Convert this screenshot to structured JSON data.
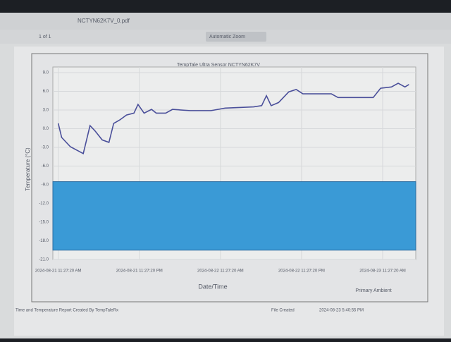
{
  "viewer": {
    "file_name": "NCTYN62K7V_0.pdf",
    "page_count": "1 of 1",
    "zoom": "Automatic Zoom"
  },
  "chart_data": {
    "type": "line",
    "title": "TempTale Ultra Sensor  NCTYN62K7V",
    "x_label": "Date/Time",
    "y_label": "Temperature (°C)",
    "x": [
      0,
      0.5,
      1.8,
      3.7,
      4.7,
      5.4,
      6.5,
      7.5,
      8.2,
      9.1,
      10.1,
      11.2,
      11.8,
      12.7,
      13.8,
      14.5,
      15.9,
      16.9,
      19.5,
      22.6,
      24.7,
      28.9,
      30.1,
      30.8,
      31.5,
      32.6,
      34.1,
      35.2,
      36.2,
      40.4,
      41.4,
      46.6,
      47.7,
      49.3,
      50.3,
      51.3,
      51.9
    ],
    "series": [
      {
        "name": "Primary Ambient",
        "color": "#4a4f9a",
        "values": [
          0.85,
          -1.4,
          -2.9,
          -4.0,
          0.5,
          -0.3,
          -1.8,
          -2.2,
          0.85,
          1.4,
          2.2,
          2.5,
          3.9,
          2.5,
          3.1,
          2.5,
          2.5,
          3.1,
          2.9,
          2.9,
          3.3,
          3.5,
          3.7,
          5.3,
          3.7,
          4.2,
          5.9,
          6.3,
          5.6,
          5.6,
          5.0,
          5.0,
          6.5,
          6.7,
          7.3,
          6.7,
          7.1
        ]
      }
    ],
    "alarm_band": {
      "range": [
        -19.5,
        -8.5
      ],
      "color": "#3a9ad6"
    },
    "xlim": [
      -0.8,
      52.9
    ],
    "xticks": [
      {
        "value": 0,
        "label": "2024-08-21 11:27:20 AM"
      },
      {
        "value": 12,
        "label": "2024-08-21 11:27:20 PM"
      },
      {
        "value": 24,
        "label": "2024-08-22 11:27:20 AM"
      },
      {
        "value": 36,
        "label": "2024-08-22 11:27:20 PM"
      },
      {
        "value": 48,
        "label": "2024-08-23 11:27:20 AM"
      }
    ],
    "ylim": [
      -21,
      9
    ],
    "yticks": [
      {
        "value": 9,
        "label": "9.0"
      },
      {
        "value": 6,
        "label": "6.0"
      },
      {
        "value": 3,
        "label": "3.0"
      },
      {
        "value": 0,
        "label": "0.0"
      },
      {
        "value": -3,
        "label": "-3.0"
      },
      {
        "value": -6,
        "label": "-6.0"
      },
      {
        "value": -9,
        "label": "-9.0"
      },
      {
        "value": -12,
        "label": "-12.0"
      },
      {
        "value": -15,
        "label": "-15.0"
      },
      {
        "value": -18,
        "label": "-18.0"
      },
      {
        "value": -21,
        "label": "-21.0"
      }
    ],
    "grid": true
  },
  "footer": {
    "created_by": "Time and Temperature Report Created By  TempTaleRx",
    "file_created_label": "File Created",
    "file_created": "2024-08-23 5:40:55 PM"
  }
}
